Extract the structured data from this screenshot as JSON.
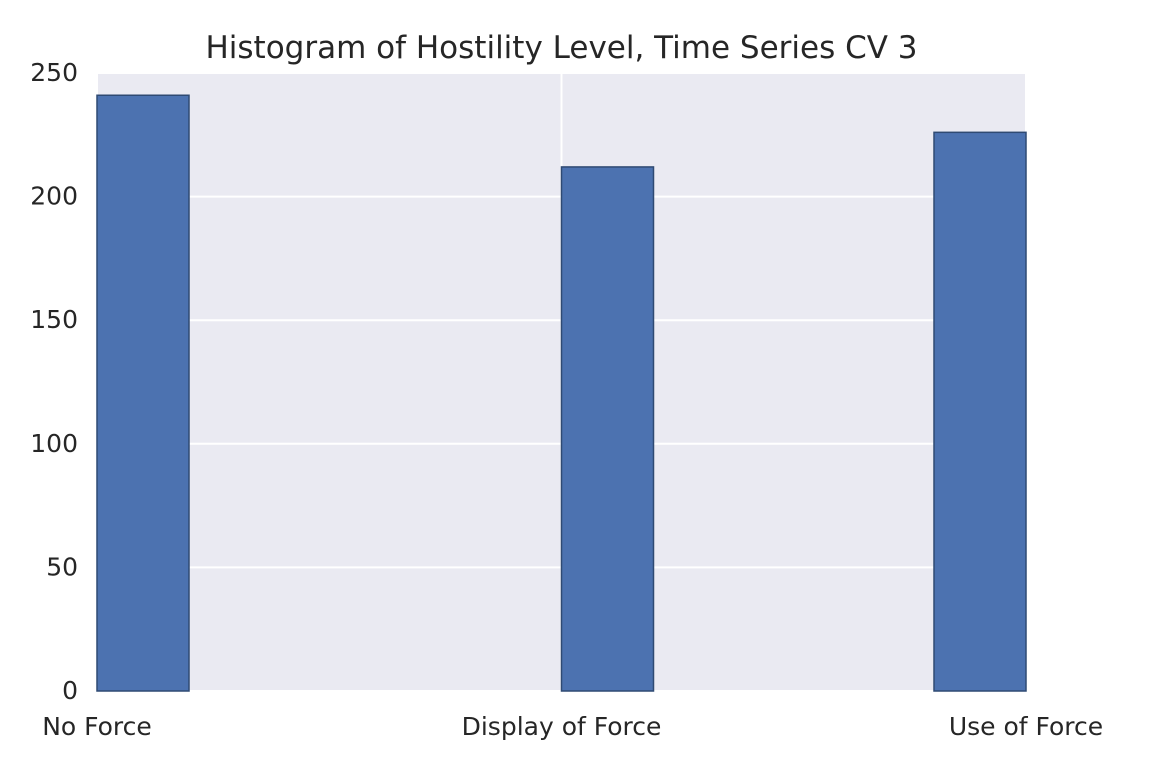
{
  "chart_data": {
    "type": "bar",
    "title": "Histogram of Hostility Level, Time Series CV 3",
    "xlabel": "",
    "ylabel": "",
    "categories": [
      "No Force",
      "Display of Force",
      "Use of Force"
    ],
    "values": [
      241,
      212,
      226
    ],
    "ylim": [
      0,
      250
    ],
    "yticks": [
      "0",
      "50",
      "100",
      "150",
      "200",
      "250"
    ],
    "grid": true,
    "legend": "none",
    "colors": {
      "bar_fill": "#4c72b0",
      "bar_edge": "#2f4a73",
      "plot_background": "#eaeaf2",
      "grid": "#ffffff",
      "text": "#262626"
    }
  }
}
